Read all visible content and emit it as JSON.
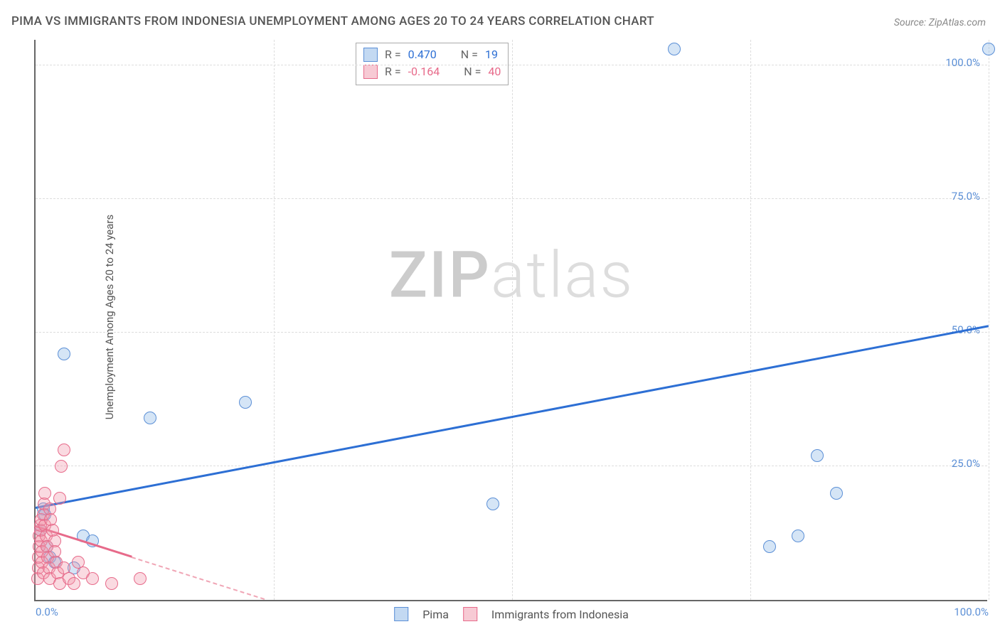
{
  "title": "PIMA VS IMMIGRANTS FROM INDONESIA UNEMPLOYMENT AMONG AGES 20 TO 24 YEARS CORRELATION CHART",
  "source": "Source: ZipAtlas.com",
  "y_axis_label": "Unemployment Among Ages 20 to 24 years",
  "watermark_bold": "ZIP",
  "watermark_light": "atlas",
  "chart": {
    "type": "scatter",
    "xlim": [
      0,
      100
    ],
    "ylim": [
      0,
      105
    ],
    "xticks": [
      {
        "pos": 0,
        "label": "0.0%",
        "align": "left"
      },
      {
        "pos": 100,
        "label": "100.0%",
        "align": "right"
      }
    ],
    "yticks": [
      {
        "pos": 25,
        "label": "25.0%"
      },
      {
        "pos": 50,
        "label": "50.0%"
      },
      {
        "pos": 75,
        "label": "75.0%"
      },
      {
        "pos": 100,
        "label": "100.0%"
      }
    ],
    "grid_x": [
      25,
      50,
      75,
      100
    ],
    "grid_y": [
      25,
      50,
      75,
      100
    ],
    "series": [
      {
        "name": "Pima",
        "color_fill": "rgba(135,180,230,0.35)",
        "color_stroke": "#5b8fd6",
        "marker_radius": 9,
        "points": [
          {
            "x": 0.5,
            "y": 13
          },
          {
            "x": 0.8,
            "y": 17
          },
          {
            "x": 1.0,
            "y": 16
          },
          {
            "x": 1.2,
            "y": 10
          },
          {
            "x": 1.5,
            "y": 8
          },
          {
            "x": 2,
            "y": 7
          },
          {
            "x": 3,
            "y": 46
          },
          {
            "x": 4,
            "y": 6
          },
          {
            "x": 5,
            "y": 12
          },
          {
            "x": 6,
            "y": 11
          },
          {
            "x": 12,
            "y": 34
          },
          {
            "x": 22,
            "y": 37
          },
          {
            "x": 48,
            "y": 18
          },
          {
            "x": 67,
            "y": 103
          },
          {
            "x": 77,
            "y": 10
          },
          {
            "x": 80,
            "y": 12
          },
          {
            "x": 82,
            "y": 27
          },
          {
            "x": 84,
            "y": 20
          },
          {
            "x": 100,
            "y": 103
          }
        ],
        "trend": {
          "x1": 0,
          "y1": 17,
          "x2": 100,
          "y2": 51,
          "solid_frac": 1.0
        }
      },
      {
        "name": "Immigrants from Indonesia",
        "color_fill": "rgba(240,150,170,0.35)",
        "color_stroke": "#e76a8a",
        "marker_radius": 9,
        "points": [
          {
            "x": 0.2,
            "y": 4
          },
          {
            "x": 0.3,
            "y": 6
          },
          {
            "x": 0.3,
            "y": 8
          },
          {
            "x": 0.4,
            "y": 10
          },
          {
            "x": 0.4,
            "y": 12
          },
          {
            "x": 0.5,
            "y": 13
          },
          {
            "x": 0.5,
            "y": 14
          },
          {
            "x": 0.6,
            "y": 15
          },
          {
            "x": 0.6,
            "y": 11
          },
          {
            "x": 0.7,
            "y": 9
          },
          {
            "x": 0.7,
            "y": 7
          },
          {
            "x": 0.8,
            "y": 5
          },
          {
            "x": 0.8,
            "y": 16
          },
          {
            "x": 0.9,
            "y": 18
          },
          {
            "x": 1.0,
            "y": 20
          },
          {
            "x": 1.0,
            "y": 14
          },
          {
            "x": 1.1,
            "y": 12
          },
          {
            "x": 1.2,
            "y": 10
          },
          {
            "x": 1.3,
            "y": 8
          },
          {
            "x": 1.4,
            "y": 6
          },
          {
            "x": 1.5,
            "y": 4
          },
          {
            "x": 1.5,
            "y": 17
          },
          {
            "x": 1.6,
            "y": 15
          },
          {
            "x": 1.8,
            "y": 13
          },
          {
            "x": 2.0,
            "y": 11
          },
          {
            "x": 2.0,
            "y": 9
          },
          {
            "x": 2.2,
            "y": 7
          },
          {
            "x": 2.3,
            "y": 5
          },
          {
            "x": 2.5,
            "y": 3
          },
          {
            "x": 2.5,
            "y": 19
          },
          {
            "x": 2.7,
            "y": 25
          },
          {
            "x": 3.0,
            "y": 28
          },
          {
            "x": 3.0,
            "y": 6
          },
          {
            "x": 3.5,
            "y": 4
          },
          {
            "x": 4.0,
            "y": 3
          },
          {
            "x": 4.5,
            "y": 7
          },
          {
            "x": 5.0,
            "y": 5
          },
          {
            "x": 6.0,
            "y": 4
          },
          {
            "x": 8.0,
            "y": 3
          },
          {
            "x": 11.0,
            "y": 4
          }
        ],
        "trend": {
          "x1": 0,
          "y1": 13.5,
          "x2": 24,
          "y2": 0,
          "solid_frac": 0.42
        }
      }
    ]
  },
  "correlation_box": {
    "rows": [
      {
        "swatch": "blue",
        "r_label": "R =",
        "r_value": "0.470",
        "n_label": "N =",
        "n_value": "19"
      },
      {
        "swatch": "pink",
        "r_label": "R =",
        "r_value": "-0.164",
        "n_label": "N =",
        "n_value": "40"
      }
    ]
  },
  "legend": [
    {
      "swatch": "blue",
      "label": "Pima"
    },
    {
      "swatch": "pink",
      "label": "Immigrants from Indonesia"
    }
  ]
}
